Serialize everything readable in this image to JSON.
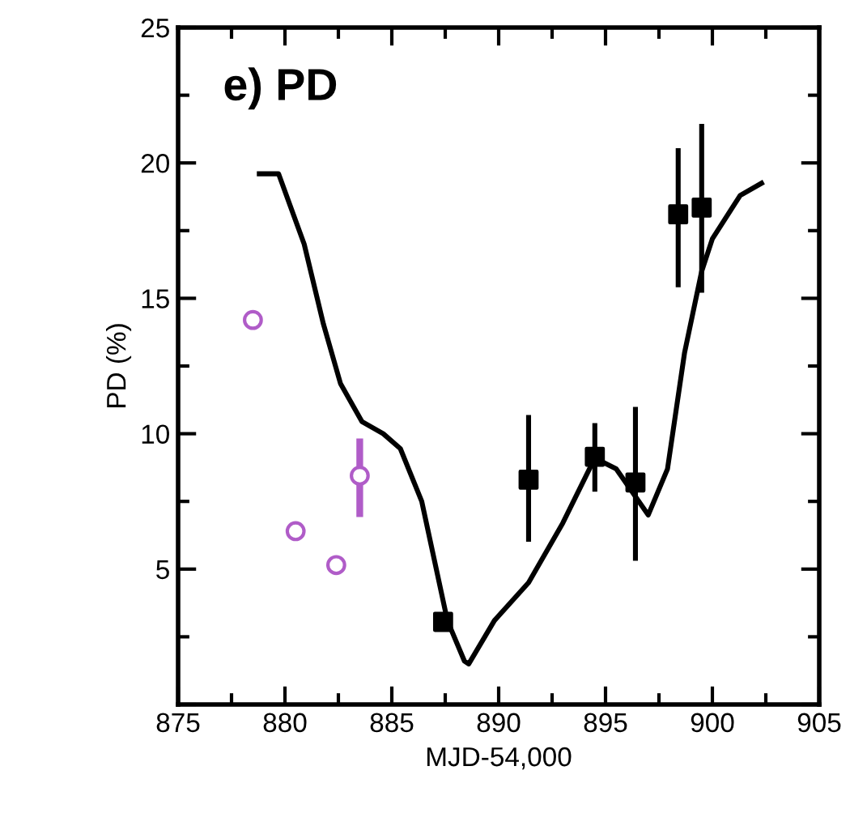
{
  "chart_data": {
    "type": "scatter",
    "xlabel": "MJD-54,000",
    "ylabel": "PD (%)",
    "annotations": [
      "e) PD"
    ],
    "xlim": [
      875,
      905
    ],
    "xticks": [
      875,
      880,
      885,
      890,
      895,
      900,
      905
    ],
    "ylim": [
      0,
      25
    ],
    "yticks": [
      {
        "value": 0,
        "label": null
      },
      5,
      10,
      15,
      20,
      25
    ],
    "grid": false,
    "series": [
      {
        "type": "line",
        "color": "#000000",
        "marker": "none",
        "line_style": "solid",
        "x": [
          878.8,
          879.7,
          880.9,
          881.8,
          882.6,
          883.6,
          884.6,
          885.4,
          886.4,
          887.6,
          888.4,
          888.6,
          889.8,
          891.4,
          893.0,
          894.5,
          895.5,
          897.0,
          897.9,
          898.7,
          899.5,
          900.0,
          901.3,
          902.3
        ],
        "values": [
          19.6,
          19.6,
          17.0,
          14.05,
          11.85,
          10.45,
          10.0,
          9.45,
          7.5,
          3.1,
          1.6,
          1.5,
          3.1,
          4.5,
          6.7,
          9.1,
          8.7,
          7.0,
          8.7,
          13.0,
          16.0,
          17.2,
          18.8,
          19.25
        ]
      },
      {
        "color": "#000000",
        "marker": "square",
        "x": [
          887.4,
          891.4,
          894.5,
          896.4,
          898.4,
          899.5
        ],
        "values": [
          3.05,
          8.3,
          9.15,
          8.2,
          18.1,
          18.35
        ],
        "errors": [
          null,
          [
            6.1,
            10.6
          ],
          [
            7.95,
            10.3
          ],
          [
            5.4,
            10.9
          ],
          [
            15.5,
            20.45
          ],
          [
            15.3,
            21.35
          ]
        ]
      },
      {
        "color": "#b05cc8",
        "marker": "circle",
        "x": [
          878.5,
          880.5,
          882.4,
          883.5
        ],
        "values": [
          14.2,
          6.4,
          5.15,
          8.45
        ],
        "errors": [
          null,
          null,
          null,
          [
            7.05,
            9.7
          ]
        ]
      }
    ]
  }
}
